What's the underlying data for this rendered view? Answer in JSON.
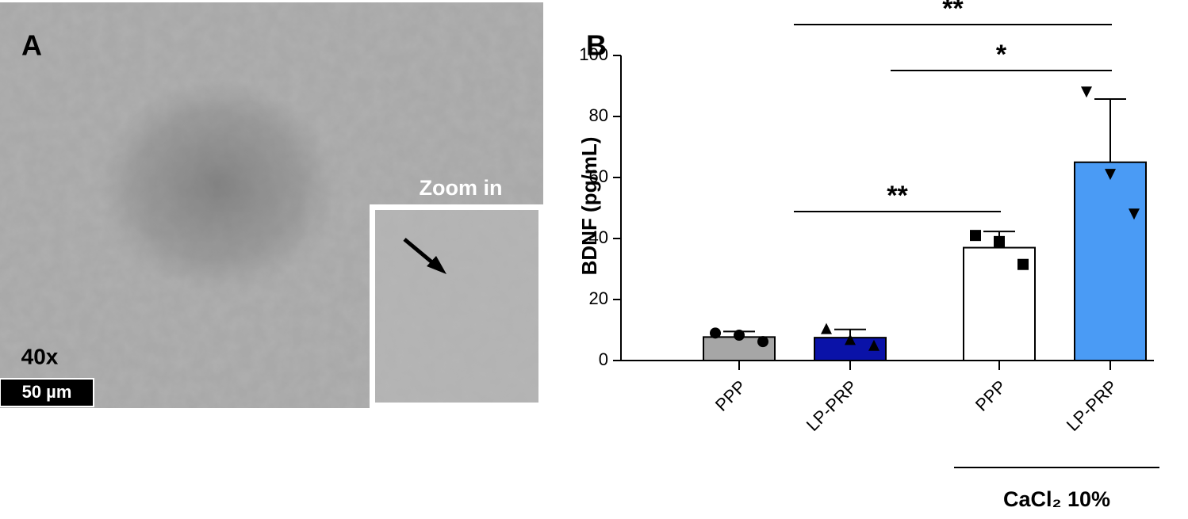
{
  "panel_a": {
    "label": "A",
    "magnification": "40x",
    "scale_bar": "50 µm",
    "inset_label": "Zoom in"
  },
  "chart_data": {
    "type": "bar",
    "panel_label": "B",
    "y_label": "BDNF (pg/mL)",
    "categories": [
      "PPP",
      "LP-PRP",
      "PPP",
      "LP-PRP"
    ],
    "values": [
      7.7,
      7.5,
      37,
      65
    ],
    "errors": [
      1.8,
      2.7,
      5.3,
      20.7
    ],
    "colors": [
      "#a6a6a6",
      "#0a12a8",
      "#ffffff",
      "#4a9bf5"
    ],
    "markers": [
      "circle",
      "triangle",
      "square",
      "triangle-down"
    ],
    "points": [
      [
        9,
        8.3,
        6.2
      ],
      [
        10.5,
        6.9,
        5
      ],
      [
        41,
        39,
        31.5
      ],
      [
        88,
        61,
        48
      ]
    ],
    "ylim": [
      0,
      100
    ],
    "yticks": [
      0,
      20,
      40,
      60,
      80,
      100
    ],
    "significance": [
      {
        "pair": [
          1,
          3
        ],
        "label": "**"
      },
      {
        "pair": [
          2,
          3
        ],
        "label": "*"
      },
      {
        "pair": [
          1,
          2
        ],
        "label": "**"
      }
    ],
    "group": {
      "label": "CaCl₂ 10%",
      "span": [
        2,
        3
      ]
    }
  }
}
